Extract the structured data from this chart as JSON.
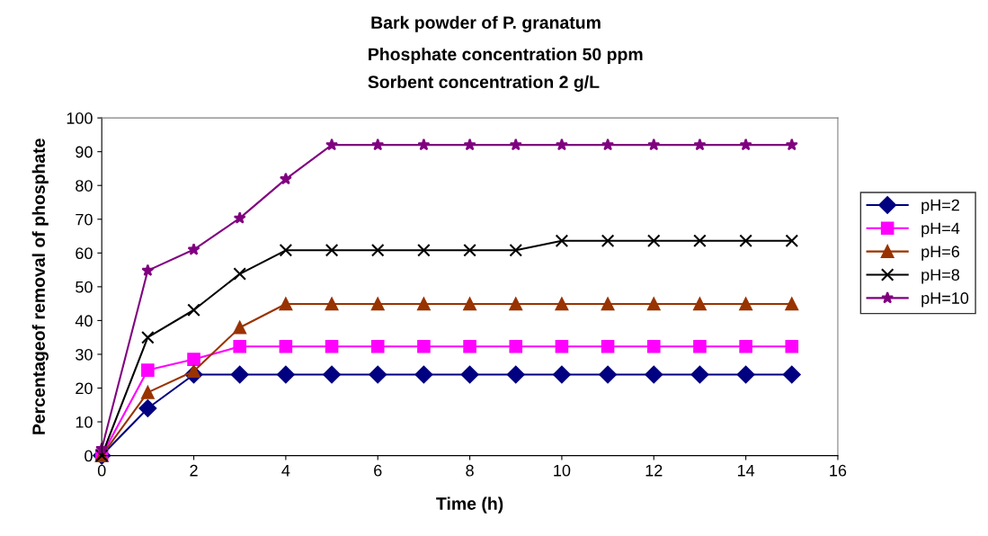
{
  "chart_data": {
    "type": "line",
    "title": "Bark powder of P. granatum",
    "subtitle": "Phosphate concentration 50 ppm\nSorbent concentration 2 g/L",
    "xlabel": "Time (h)",
    "ylabel": "Percentageof removal of phosphate",
    "x": [
      0,
      1,
      2,
      3,
      4,
      5,
      6,
      7,
      8,
      9,
      10,
      11,
      12,
      13,
      14,
      15
    ],
    "xlim": [
      0,
      16
    ],
    "xticks": [
      0,
      2,
      4,
      6,
      8,
      10,
      12,
      14,
      16
    ],
    "ylim": [
      0,
      100
    ],
    "yticks": [
      0,
      10,
      20,
      30,
      40,
      50,
      60,
      70,
      80,
      90,
      100
    ],
    "grid": false,
    "legend": "right",
    "line_style": "solid",
    "series": [
      {
        "name": "pH=2",
        "color": "#000080",
        "marker": "diamond",
        "values": [
          0,
          14,
          24,
          24,
          24,
          24,
          24,
          24,
          24,
          24,
          24,
          24,
          24,
          24,
          24,
          24
        ]
      },
      {
        "name": "pH=4",
        "color": "#ff00ff",
        "marker": "square",
        "values": [
          0,
          25.3,
          28.5,
          32.3,
          32.3,
          32.3,
          32.3,
          32.3,
          32.3,
          32.3,
          32.3,
          32.3,
          32.3,
          32.3,
          32.3,
          32.3
        ]
      },
      {
        "name": "pH=6",
        "color": "#993300",
        "marker": "triangle",
        "values": [
          0,
          18.7,
          25,
          37.9,
          44.9,
          44.9,
          44.9,
          44.9,
          44.9,
          44.9,
          44.9,
          44.9,
          44.9,
          44.9,
          44.9,
          44.9
        ]
      },
      {
        "name": "pH=8",
        "color": "#000000",
        "marker": "cross",
        "values": [
          0,
          35,
          43.1,
          53.8,
          60.8,
          60.8,
          60.8,
          60.8,
          60.8,
          60.8,
          63.6,
          63.6,
          63.6,
          63.6,
          63.6,
          63.6
        ]
      },
      {
        "name": "pH=10",
        "color": "#800080",
        "marker": "star",
        "values": [
          2,
          54.8,
          61,
          70.3,
          81.9,
          92,
          92,
          92,
          92,
          92,
          92,
          92,
          92,
          92,
          92,
          92
        ]
      }
    ]
  }
}
